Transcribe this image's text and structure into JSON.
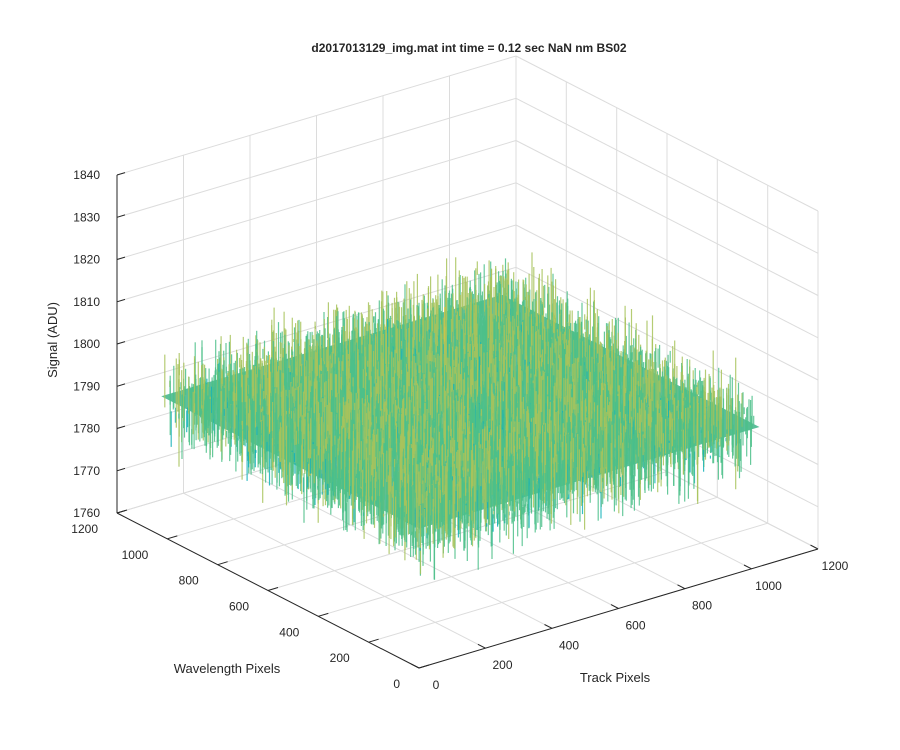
{
  "chart_data": {
    "type": "surface",
    "title": "d2017013129_img.mat int time = 0.12 sec  NaN nm BS02",
    "xlabel": "Track Pixels",
    "ylabel": "Wavelength Pixels",
    "zlabel": "Signal (ADU)",
    "xlim": [
      0,
      1200
    ],
    "ylim": [
      0,
      1200
    ],
    "zlim": [
      1760,
      1840
    ],
    "x_ticks": [
      "0",
      "200",
      "400",
      "600",
      "800",
      "1000",
      "1200"
    ],
    "y_ticks": [
      "0",
      "200",
      "400",
      "600",
      "800",
      "1000",
      "1200"
    ],
    "z_ticks": [
      "1760",
      "1770",
      "1780",
      "1790",
      "1800",
      "1810",
      "1820",
      "1830",
      "1840"
    ],
    "surface": {
      "x_range": [
        0,
        1024
      ],
      "y_range": [
        0,
        1024
      ],
      "mean_signal": 1793,
      "signal_range": [
        1765,
        1825
      ],
      "colormap": [
        "#1f8fd0",
        "#14b1b8",
        "#4cc08a",
        "#a8c35c",
        "#e6c33c"
      ]
    },
    "grid": true,
    "colors": {
      "axis": "#262626",
      "grid": "#dcdcdc"
    }
  }
}
